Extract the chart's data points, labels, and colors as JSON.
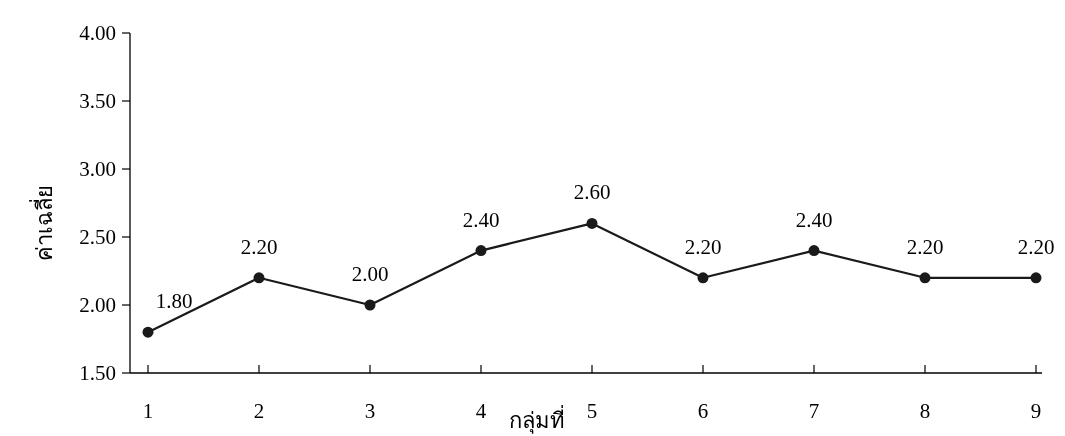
{
  "chart_data": {
    "type": "line",
    "xlabel": "กลุ่มที่",
    "ylabel": "ค่าเฉลี่ย",
    "categories": [
      "1",
      "2",
      "3",
      "4",
      "5",
      "6",
      "7",
      "8",
      "9"
    ],
    "values": [
      1.8,
      2.2,
      2.0,
      2.4,
      2.6,
      2.2,
      2.4,
      2.2,
      2.2
    ],
    "value_labels": [
      "1.80",
      "2.20",
      "2.00",
      "2.40",
      "2.60",
      "2.20",
      "2.40",
      "2.20",
      "2.20"
    ],
    "color": "#1a1a1a",
    "marker": "circle",
    "ylim": [
      1.5,
      4.0
    ],
    "yticks": [
      {
        "value": 1.5,
        "label": "1.50"
      },
      {
        "value": 2.0,
        "label": "2.00"
      },
      {
        "value": 2.5,
        "label": "2.50"
      },
      {
        "value": 3.0,
        "label": "3.00"
      },
      {
        "value": 3.5,
        "label": "3.50"
      },
      {
        "value": 4.0,
        "label": "4.00"
      }
    ]
  }
}
